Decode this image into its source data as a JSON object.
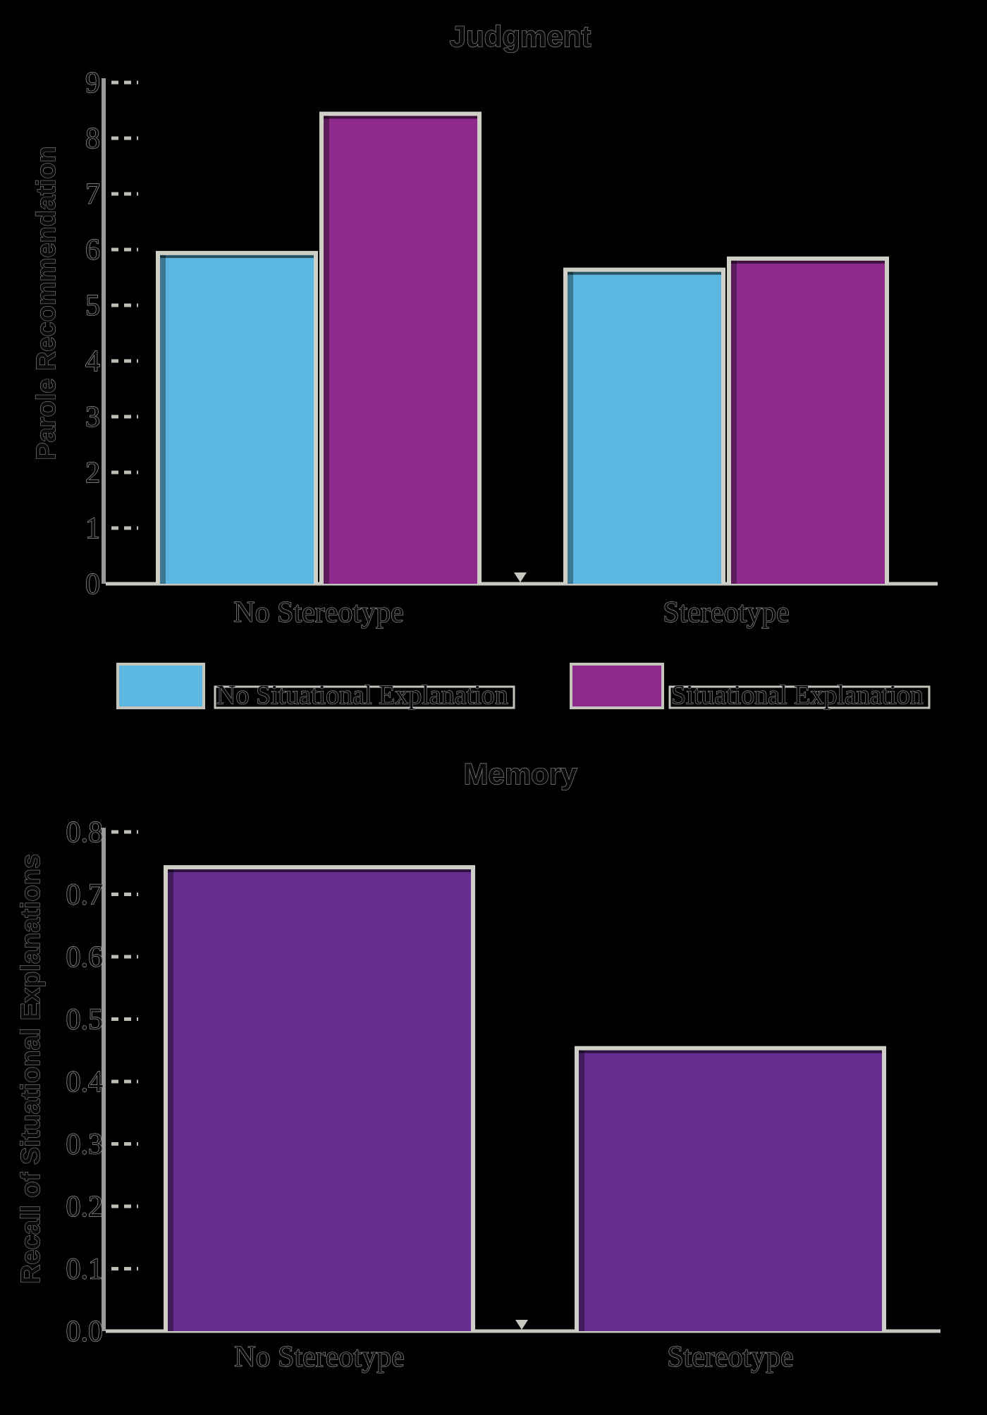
{
  "chart_data": [
    {
      "type": "bar",
      "title": "Judgment",
      "xlabel": "",
      "ylabel": "Parole Recommendation",
      "ylim": [
        0,
        9
      ],
      "yticks": [
        "0",
        "1",
        "2",
        "3",
        "4",
        "5",
        "6",
        "7",
        "8",
        "9"
      ],
      "categories": [
        "No Stereotype",
        "Stereotype"
      ],
      "series": [
        {
          "name": "No Situational Explanation",
          "color": "#5bb6e0",
          "values": [
            5.9,
            5.6
          ]
        },
        {
          "name": "Situational Explanation",
          "color": "#8e2a8b",
          "values": [
            8.4,
            5.8
          ]
        }
      ],
      "grid": false,
      "legend": "bottom"
    },
    {
      "type": "bar",
      "title": "Memory",
      "xlabel": "",
      "ylabel": "Recall of Situational Explanations",
      "ylim": [
        0,
        0.8
      ],
      "yticks": [
        "0.0",
        "0.1",
        "0.2",
        "0.3",
        "0.4",
        "0.5",
        "0.6",
        "0.7",
        "0.8"
      ],
      "categories": [
        "No Stereotype",
        "Stereotype"
      ],
      "series": [
        {
          "color": "#652d90",
          "values": [
            0.74,
            0.45
          ]
        }
      ],
      "grid": false
    }
  ]
}
